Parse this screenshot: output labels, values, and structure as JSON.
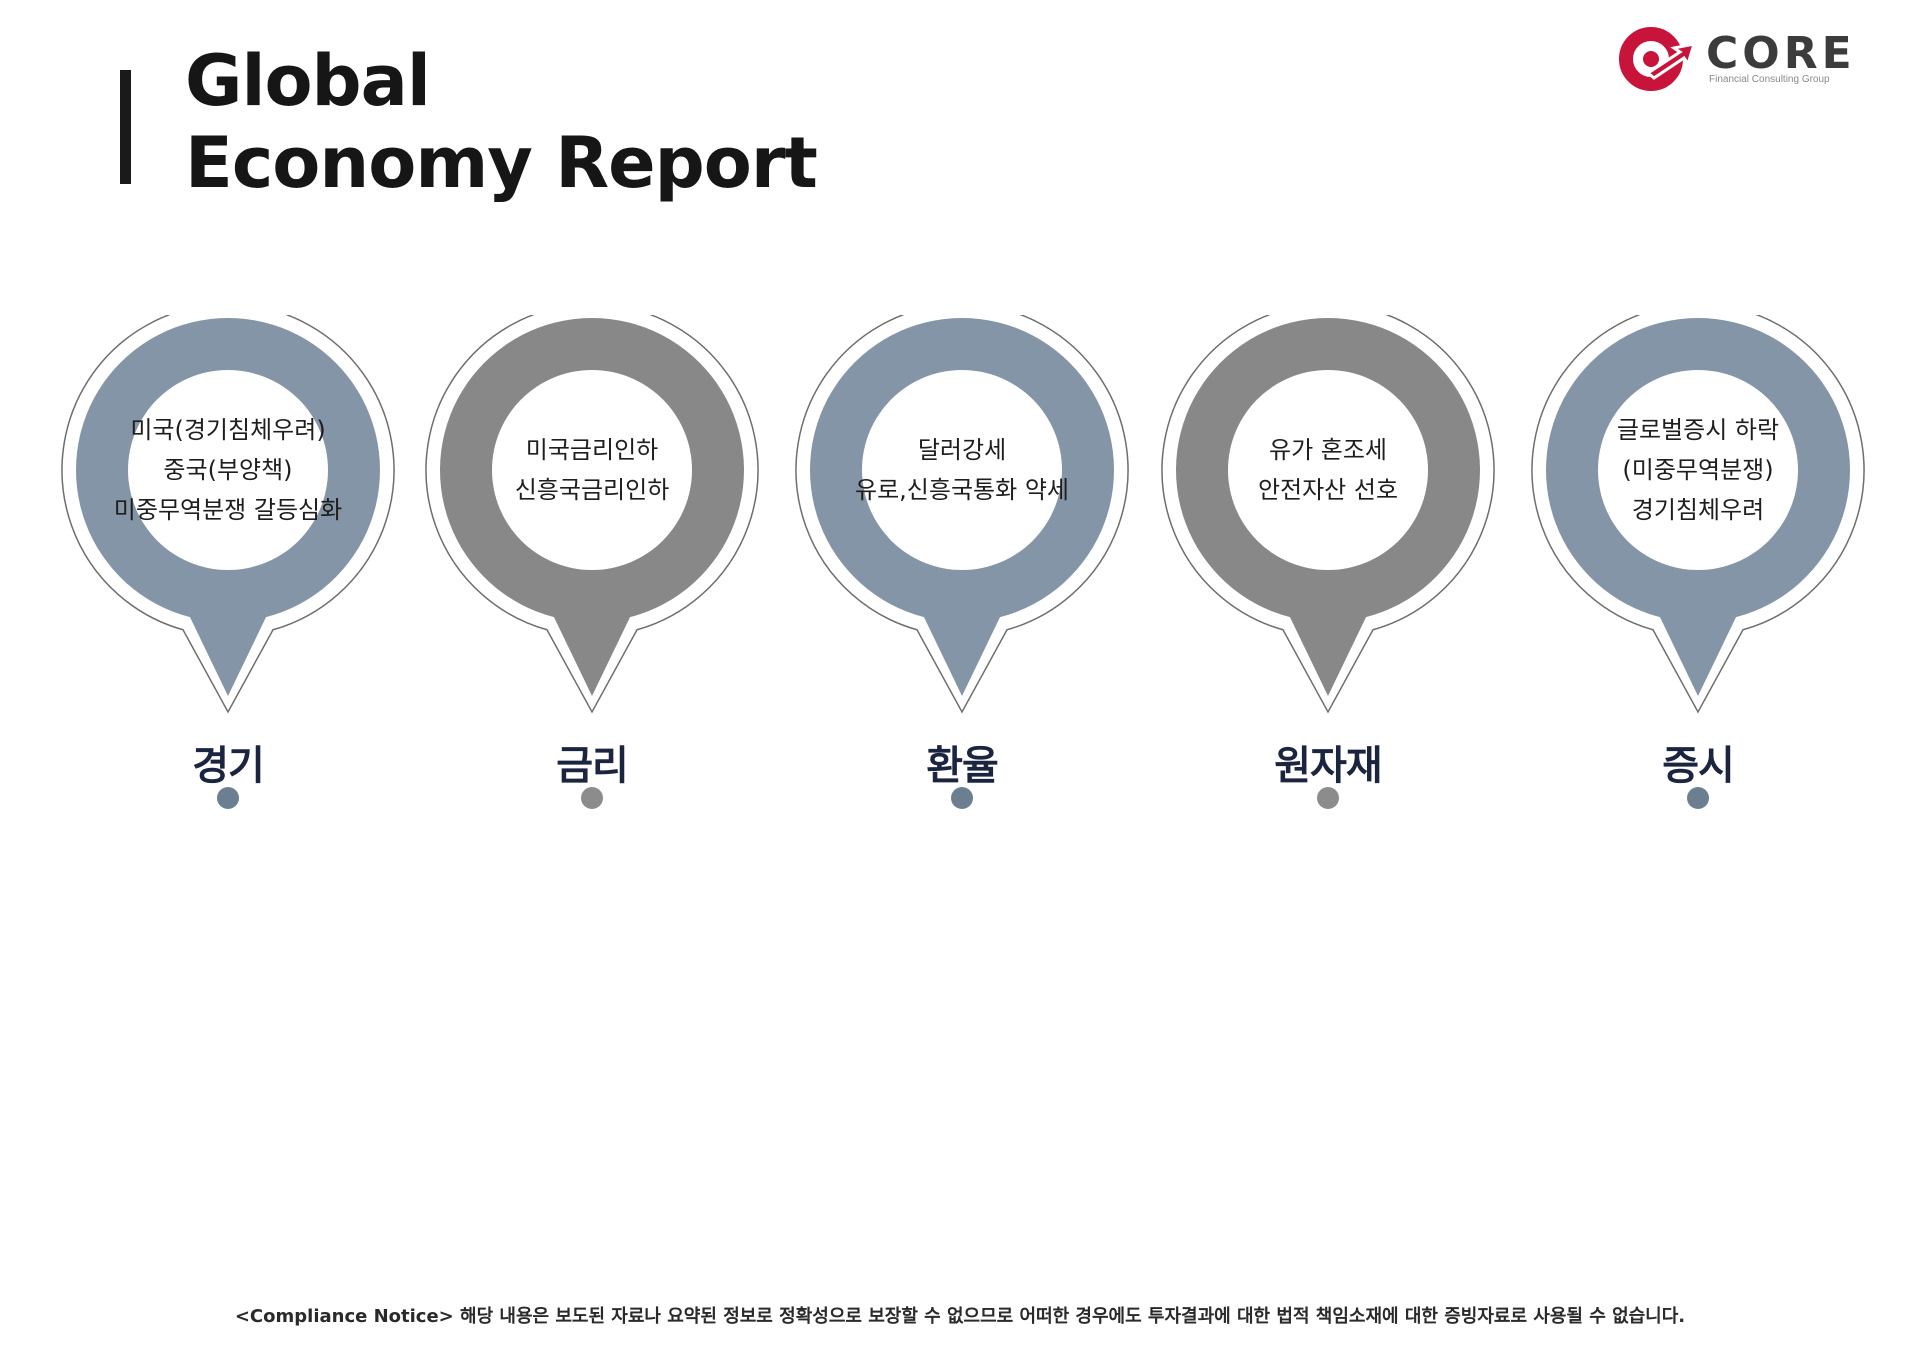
{
  "header": {
    "title_line1": "Global",
    "title_line2": "Economy Report"
  },
  "logo": {
    "wordmark": "CORE",
    "tagline": "Financial Consulting Group",
    "colors": {
      "mark": "#c8133b",
      "text": "#3c3c3c"
    }
  },
  "colors": {
    "steel_blue": "#8395a6",
    "gray": "#888888",
    "dot_blue": "#6c7f91",
    "dot_gray": "#8c8c8c",
    "label": "#1c2540"
  },
  "items": [
    {
      "label": "경기",
      "lines": [
        "미국(경기침체우려)",
        "중국(부양책)",
        "미중무역분쟁 갈등심화"
      ],
      "theme": "blue"
    },
    {
      "label": "금리",
      "lines": [
        "미국금리인하",
        "신흥국금리인하"
      ],
      "theme": "gray"
    },
    {
      "label": "환율",
      "lines": [
        "달러강세",
        "유로,신흥국통화 약세"
      ],
      "theme": "blue"
    },
    {
      "label": "원자재",
      "lines": [
        "유가 혼조세",
        "안전자산 선호"
      ],
      "theme": "gray"
    },
    {
      "label": "증시",
      "lines": [
        "글로벌증시 하락",
        "(미중무역분쟁)",
        "경기침체우려"
      ],
      "theme": "blue"
    }
  ],
  "footer": {
    "notice": "<Compliance Notice> 해당 내용은 보도된 자료나 요약된 정보로 정확성으로 보장할 수 없으므로 어떠한 경우에도 투자결과에 대한 법적 책임소재에 대한 증빙자료로 사용될 수 없습니다."
  }
}
